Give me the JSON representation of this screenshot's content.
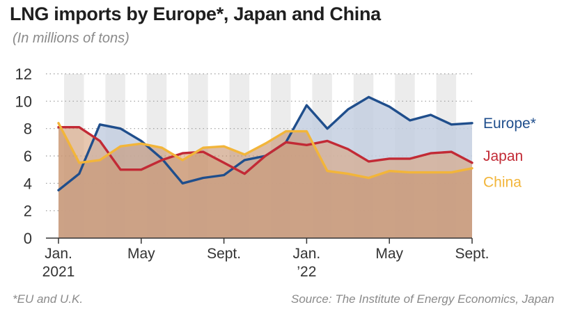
{
  "chart_data": {
    "type": "line",
    "title": "LNG imports by Europe*, Japan and China",
    "subtitle": "(In millions of tons)",
    "xlabel": "",
    "ylabel": "",
    "ylim": [
      0,
      12
    ],
    "yticks": [
      "0",
      "2",
      "4",
      "6",
      "8",
      "10",
      "12"
    ],
    "x_tick_labels": [
      {
        "month_index": 0,
        "lines": [
          "Jan.",
          "2021"
        ]
      },
      {
        "month_index": 4,
        "lines": [
          "May"
        ]
      },
      {
        "month_index": 8,
        "lines": [
          "Sept."
        ]
      },
      {
        "month_index": 12,
        "lines": [
          "Jan.",
          "’22"
        ]
      },
      {
        "month_index": 16,
        "lines": [
          "May"
        ]
      },
      {
        "month_index": 20,
        "lines": [
          "Sept."
        ]
      }
    ],
    "series": [
      {
        "name": "Europe*",
        "color": "#1f4e8c",
        "fill": "#c4cfe1",
        "values": [
          3.5,
          4.7,
          8.3,
          8.0,
          7.1,
          5.8,
          4.0,
          4.4,
          4.6,
          5.7,
          6.0,
          7.0,
          9.7,
          8.0,
          9.4,
          10.3,
          9.6,
          8.6,
          9.0,
          8.3,
          8.4
        ]
      },
      {
        "name": "Japan",
        "color": "#c22a35",
        "fill": "#d8a47f",
        "values": [
          8.1,
          8.1,
          7.1,
          5.0,
          5.0,
          5.7,
          6.2,
          6.3,
          5.5,
          4.7,
          6.0,
          7.0,
          6.8,
          7.1,
          6.5,
          5.6,
          5.8,
          5.8,
          6.2,
          6.3,
          5.5
        ]
      },
      {
        "name": "China",
        "color": "#f2b53a",
        "fill": "#c79572",
        "values": [
          8.4,
          5.5,
          5.7,
          6.7,
          6.9,
          6.6,
          5.7,
          6.6,
          6.7,
          6.1,
          6.9,
          7.8,
          7.8,
          4.9,
          4.7,
          4.4,
          4.9,
          4.8,
          4.8,
          4.8,
          5.1
        ]
      }
    ]
  },
  "footnote": "*EU and U.K.",
  "source": "Source: The Institute of Energy Economics, Japan"
}
